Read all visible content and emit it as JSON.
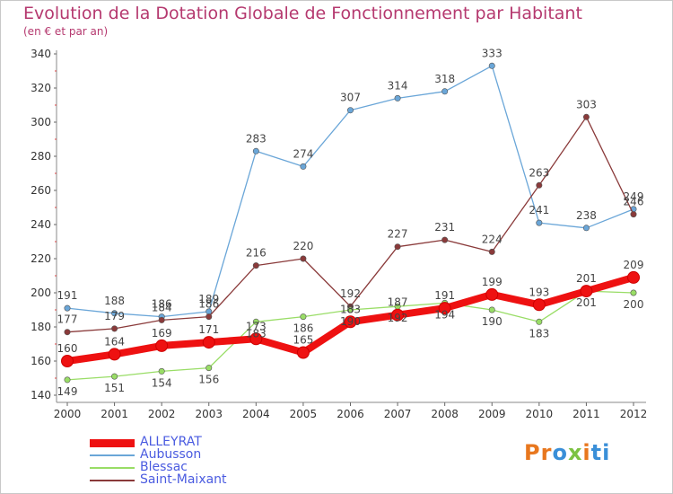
{
  "title": "Evolution de la Dotation Globale de Fonctionnement par Habitant",
  "subtitle": "(en € et par an)",
  "logo": [
    "Pr",
    "o",
    "x",
    "i",
    "ti"
  ],
  "chart_data": {
    "type": "line",
    "x": [
      "2000",
      "2001",
      "2002",
      "2003",
      "2004",
      "2005",
      "2006",
      "2007",
      "2008",
      "2009",
      "2010",
      "2011",
      "2012"
    ],
    "ylim": [
      140,
      340
    ],
    "yticks": [
      140,
      160,
      180,
      200,
      220,
      240,
      260,
      280,
      300,
      320,
      340
    ],
    "grid": false,
    "legend_position": "bottom-left",
    "series": [
      {
        "name": "ALLEYRAT",
        "color": "#ee1111",
        "values": [
          160,
          164,
          169,
          171,
          173,
          165,
          183,
          187,
          191,
          199,
          193,
          201,
          209
        ]
      },
      {
        "name": "Aubusson",
        "color": "#6aa6d8",
        "values": [
          191,
          188,
          186,
          189,
          283,
          274,
          307,
          314,
          318,
          333,
          241,
          238,
          249
        ]
      },
      {
        "name": "Blessac",
        "color": "#99dd66",
        "values": [
          149,
          151,
          154,
          156,
          183,
          186,
          190,
          192,
          194,
          190,
          183,
          201,
          200
        ]
      },
      {
        "name": "Saint-Maixant",
        "color": "#8a3a3a",
        "values": [
          177,
          179,
          184,
          186,
          216,
          220,
          192,
          227,
          231,
          224,
          263,
          303,
          246
        ]
      }
    ]
  }
}
